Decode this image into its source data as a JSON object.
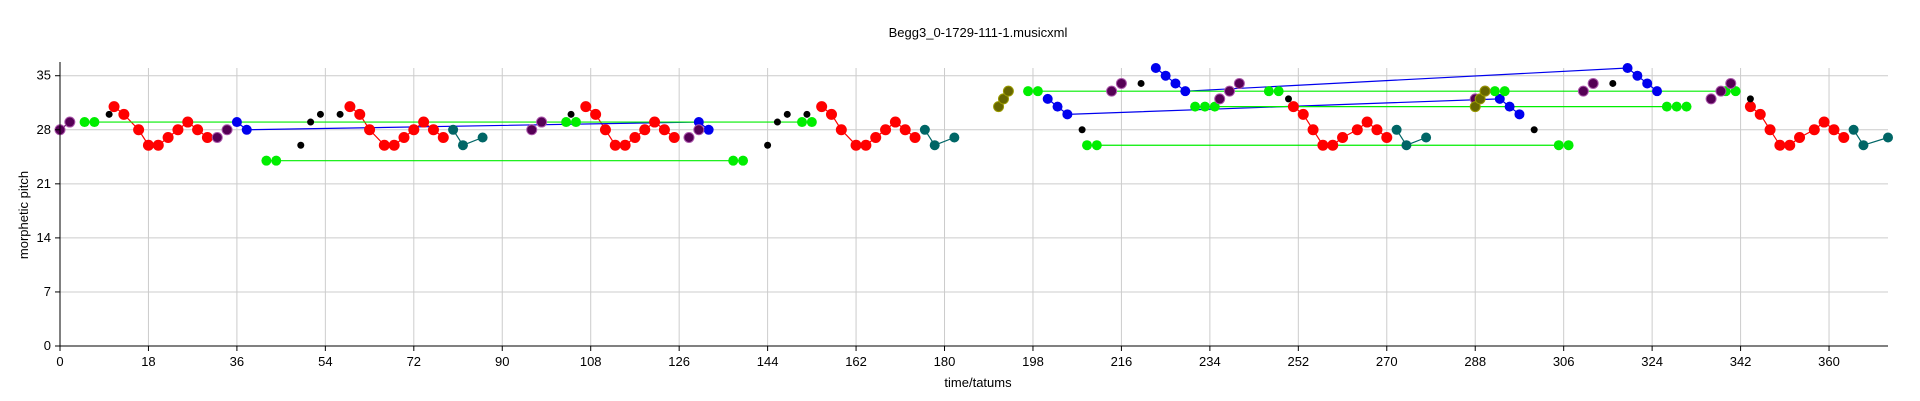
{
  "chart_data": {
    "type": "scatter",
    "title": "Begg3_0-1729-111-1.musicxml",
    "xlabel": "time/tatums",
    "ylabel": "morphetic pitch",
    "xlim": [
      0,
      372
    ],
    "ylim": [
      0,
      36
    ],
    "xticks": [
      0,
      18,
      36,
      54,
      72,
      90,
      108,
      126,
      144,
      162,
      180,
      198,
      216,
      234,
      252,
      270,
      288,
      306,
      324,
      342,
      360
    ],
    "yticks": [
      0,
      7,
      14,
      21,
      28,
      35
    ],
    "grid": true,
    "colors": {
      "red": "#ff0000",
      "green": "#00ee00",
      "blue": "#0000ee",
      "teal": "#006666",
      "purple": "#550055",
      "black": "#000000",
      "olive": "#666600",
      "pink": "#aa55aa"
    },
    "series": [
      {
        "color": "red",
        "line": true,
        "points": [
          [
            11,
            31
          ],
          [
            13,
            30
          ],
          [
            16,
            28
          ],
          [
            18,
            26
          ],
          [
            20,
            26
          ],
          [
            22,
            27
          ],
          [
            24,
            28
          ],
          [
            26,
            29
          ],
          [
            28,
            28
          ],
          [
            30,
            27
          ]
        ]
      },
      {
        "color": "teal",
        "line": true,
        "points": [
          [
            80,
            28
          ],
          [
            82,
            26
          ],
          [
            86,
            27
          ]
        ]
      },
      {
        "color": "red",
        "line": true,
        "points": [
          [
            59,
            31
          ],
          [
            61,
            30
          ],
          [
            63,
            28
          ],
          [
            66,
            26
          ],
          [
            68,
            26
          ],
          [
            70,
            27
          ],
          [
            72,
            28
          ],
          [
            74,
            29
          ],
          [
            76,
            28
          ],
          [
            78,
            27
          ]
        ]
      },
      {
        "color": "red",
        "line": true,
        "points": [
          [
            107,
            31
          ],
          [
            109,
            30
          ],
          [
            111,
            28
          ],
          [
            113,
            26
          ],
          [
            115,
            26
          ],
          [
            117,
            27
          ],
          [
            119,
            28
          ],
          [
            121,
            29
          ],
          [
            123,
            28
          ],
          [
            125,
            27
          ]
        ]
      },
      {
        "color": "red",
        "line": true,
        "points": [
          [
            155,
            31
          ],
          [
            157,
            30
          ],
          [
            159,
            28
          ],
          [
            162,
            26
          ],
          [
            164,
            26
          ],
          [
            166,
            27
          ],
          [
            168,
            28
          ],
          [
            170,
            29
          ],
          [
            172,
            28
          ],
          [
            174,
            27
          ]
        ]
      },
      {
        "color": "teal",
        "line": true,
        "points": [
          [
            176,
            28
          ],
          [
            178,
            26
          ],
          [
            182,
            27
          ]
        ]
      },
      {
        "color": "red",
        "line": true,
        "points": [
          [
            251,
            31
          ],
          [
            253,
            30
          ],
          [
            255,
            28
          ],
          [
            257,
            26
          ],
          [
            259,
            26
          ],
          [
            261,
            27
          ],
          [
            264,
            28
          ],
          [
            266,
            29
          ],
          [
            268,
            28
          ],
          [
            270,
            27
          ]
        ]
      },
      {
        "color": "teal",
        "line": true,
        "points": [
          [
            272,
            28
          ],
          [
            274,
            26
          ],
          [
            278,
            27
          ]
        ]
      },
      {
        "color": "red",
        "line": true,
        "points": [
          [
            344,
            31
          ],
          [
            346,
            30
          ],
          [
            348,
            28
          ],
          [
            350,
            26
          ],
          [
            352,
            26
          ],
          [
            354,
            27
          ],
          [
            357,
            28
          ],
          [
            359,
            29
          ],
          [
            361,
            28
          ],
          [
            363,
            27
          ]
        ]
      },
      {
        "color": "teal",
        "line": true,
        "points": [
          [
            365,
            28
          ],
          [
            367,
            26
          ],
          [
            372,
            27
          ]
        ]
      },
      {
        "color": "blue",
        "line": true,
        "points": [
          [
            36,
            29
          ],
          [
            38,
            28
          ],
          [
            130,
            29
          ],
          [
            132,
            28
          ]
        ]
      },
      {
        "color": "blue",
        "line": true,
        "points": [
          [
            223,
            36
          ],
          [
            225,
            35
          ],
          [
            227,
            34
          ],
          [
            229,
            33
          ],
          [
            319,
            36
          ],
          [
            321,
            35
          ],
          [
            323,
            34
          ],
          [
            325,
            33
          ]
        ]
      },
      {
        "color": "blue",
        "line": true,
        "points": [
          [
            201,
            32
          ],
          [
            203,
            31
          ],
          [
            205,
            30
          ],
          [
            293,
            32
          ],
          [
            295,
            31
          ],
          [
            297,
            30
          ]
        ]
      },
      {
        "color": "green",
        "line": true,
        "points": [
          [
            5,
            29
          ],
          [
            7,
            29
          ],
          [
            103,
            29
          ],
          [
            105,
            29
          ],
          [
            151,
            29
          ],
          [
            153,
            29
          ]
        ]
      },
      {
        "color": "green",
        "line": true,
        "points": [
          [
            42,
            24
          ],
          [
            44,
            24
          ],
          [
            137,
            24
          ],
          [
            139,
            24
          ]
        ]
      },
      {
        "color": "green",
        "line": true,
        "points": [
          [
            197,
            33
          ],
          [
            199,
            33
          ],
          [
            246,
            33
          ],
          [
            248,
            33
          ],
          [
            292,
            33
          ],
          [
            294,
            33
          ],
          [
            339,
            33
          ],
          [
            341,
            33
          ]
        ]
      },
      {
        "color": "green",
        "line": true,
        "points": [
          [
            231,
            31
          ],
          [
            233,
            31
          ],
          [
            235,
            31
          ],
          [
            327,
            31
          ],
          [
            329,
            31
          ],
          [
            331,
            31
          ]
        ]
      },
      {
        "color": "green",
        "line": true,
        "points": [
          [
            209,
            26
          ],
          [
            211,
            26
          ],
          [
            305,
            26
          ],
          [
            307,
            26
          ]
        ]
      },
      {
        "color": "purple",
        "line": true,
        "points": [
          [
            0,
            28
          ],
          [
            2,
            29
          ]
        ]
      },
      {
        "color": "purple",
        "line": false,
        "points": [
          [
            32,
            27
          ],
          [
            34,
            28
          ],
          [
            96,
            28
          ],
          [
            98,
            29
          ],
          [
            128,
            27
          ],
          [
            130,
            28
          ],
          [
            214,
            33
          ],
          [
            216,
            34
          ],
          [
            236,
            32
          ],
          [
            238,
            33
          ],
          [
            240,
            34
          ],
          [
            288,
            32
          ],
          [
            290,
            33
          ],
          [
            310,
            33
          ],
          [
            312,
            34
          ],
          [
            336,
            32
          ],
          [
            338,
            33
          ],
          [
            340,
            34
          ]
        ]
      },
      {
        "color": "olive",
        "line": true,
        "points": [
          [
            191,
            31
          ],
          [
            192,
            32
          ],
          [
            193,
            33
          ]
        ]
      },
      {
        "color": "olive",
        "line": false,
        "points": [
          [
            288,
            31
          ],
          [
            289,
            32
          ],
          [
            290,
            33
          ]
        ]
      },
      {
        "color": "black",
        "line": false,
        "points": [
          [
            10,
            30
          ],
          [
            49,
            26
          ],
          [
            51,
            29
          ],
          [
            53,
            30
          ],
          [
            57,
            30
          ],
          [
            104,
            30
          ],
          [
            144,
            26
          ],
          [
            146,
            29
          ],
          [
            148,
            30
          ],
          [
            152,
            30
          ],
          [
            208,
            28
          ],
          [
            220,
            34
          ],
          [
            250,
            32
          ],
          [
            300,
            28
          ],
          [
            316,
            34
          ],
          [
            344,
            32
          ]
        ]
      }
    ]
  }
}
